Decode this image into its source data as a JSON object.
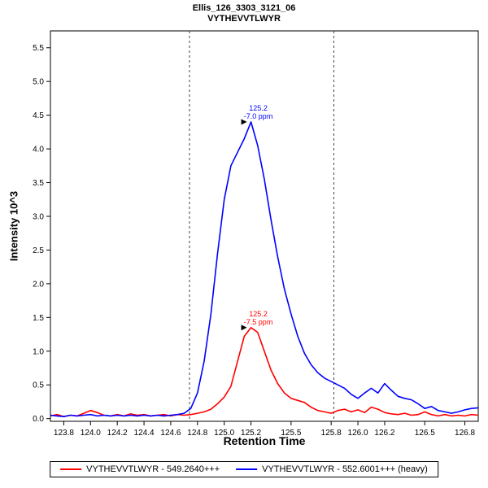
{
  "chart_data": {
    "type": "line",
    "title": "Ellis_126_3303_3121_06",
    "subtitle": "VYTHEVVTLWYR",
    "xlabel": "Retention Time",
    "ylabel": "Intensity 10^3",
    "xlim": [
      123.7,
      126.9
    ],
    "ylim": [
      -0.04,
      5.75
    ],
    "grid": false,
    "legend_position": "bottom",
    "x_ticks": [
      123.8,
      124.0,
      124.2,
      124.4,
      124.6,
      124.8,
      125.0,
      125.2,
      125.5,
      125.8,
      126.0,
      126.2,
      126.5,
      126.8
    ],
    "y_ticks": [
      0.0,
      0.5,
      1.0,
      1.5,
      2.0,
      2.5,
      3.0,
      3.5,
      4.0,
      4.5,
      5.0,
      5.5
    ],
    "integration_boundaries": [
      124.74,
      125.82
    ],
    "x": [
      123.7,
      123.75,
      123.8,
      123.85,
      123.9,
      123.95,
      124.0,
      124.05,
      124.1,
      124.15,
      124.2,
      124.25,
      124.3,
      124.35,
      124.4,
      124.45,
      124.5,
      124.55,
      124.6,
      124.65,
      124.7,
      124.75,
      124.8,
      124.85,
      124.9,
      124.95,
      125.0,
      125.05,
      125.1,
      125.15,
      125.2,
      125.25,
      125.3,
      125.35,
      125.4,
      125.45,
      125.5,
      125.55,
      125.6,
      125.65,
      125.7,
      125.75,
      125.8,
      125.85,
      125.9,
      125.95,
      126.0,
      126.05,
      126.1,
      126.15,
      126.2,
      126.25,
      126.3,
      126.35,
      126.4,
      126.45,
      126.5,
      126.55,
      126.6,
      126.65,
      126.7,
      126.75,
      126.8,
      126.85,
      126.9
    ],
    "series": [
      {
        "name": "VYTHEVVTLWYR - 549.2640+++",
        "color": "#ff0000",
        "values": [
          0.04,
          0.06,
          0.03,
          0.05,
          0.04,
          0.08,
          0.12,
          0.09,
          0.05,
          0.04,
          0.06,
          0.04,
          0.07,
          0.05,
          0.06,
          0.04,
          0.05,
          0.06,
          0.04,
          0.06,
          0.05,
          0.06,
          0.08,
          0.1,
          0.14,
          0.22,
          0.32,
          0.48,
          0.85,
          1.22,
          1.35,
          1.28,
          1.0,
          0.72,
          0.52,
          0.38,
          0.3,
          0.27,
          0.24,
          0.17,
          0.12,
          0.1,
          0.08,
          0.12,
          0.14,
          0.1,
          0.13,
          0.09,
          0.17,
          0.14,
          0.09,
          0.07,
          0.06,
          0.08,
          0.05,
          0.06,
          0.1,
          0.06,
          0.04,
          0.06,
          0.04,
          0.05,
          0.04,
          0.06,
          0.05
        ]
      },
      {
        "name": "VYTHEVVTLWYR - 552.6001+++ (heavy)",
        "color": "#0000ff",
        "values": [
          0.05,
          0.04,
          0.03,
          0.05,
          0.04,
          0.05,
          0.06,
          0.04,
          0.05,
          0.04,
          0.05,
          0.04,
          0.05,
          0.04,
          0.05,
          0.04,
          0.05,
          0.04,
          0.05,
          0.06,
          0.08,
          0.15,
          0.38,
          0.85,
          1.55,
          2.45,
          3.25,
          3.75,
          3.95,
          4.15,
          4.4,
          4.05,
          3.55,
          2.95,
          2.4,
          1.92,
          1.55,
          1.22,
          0.97,
          0.8,
          0.68,
          0.6,
          0.55,
          0.5,
          0.45,
          0.36,
          0.3,
          0.38,
          0.45,
          0.38,
          0.52,
          0.42,
          0.33,
          0.3,
          0.28,
          0.22,
          0.15,
          0.18,
          0.12,
          0.1,
          0.08,
          0.1,
          0.13,
          0.15,
          0.16
        ]
      }
    ],
    "annotations": [
      {
        "line1": "125.2",
        "line2": "-7.5 ppm",
        "x": 125.2,
        "peak_y": 1.35,
        "color": "#ff0000"
      },
      {
        "line1": "125.2",
        "line2": "-7.0 ppm",
        "x": 125.2,
        "peak_y": 4.4,
        "color": "#0000ff"
      }
    ]
  },
  "colors": {
    "light_series": "#ff0000",
    "heavy_series": "#0000ff",
    "boundary_line": "#444444",
    "axis": "#000000"
  }
}
